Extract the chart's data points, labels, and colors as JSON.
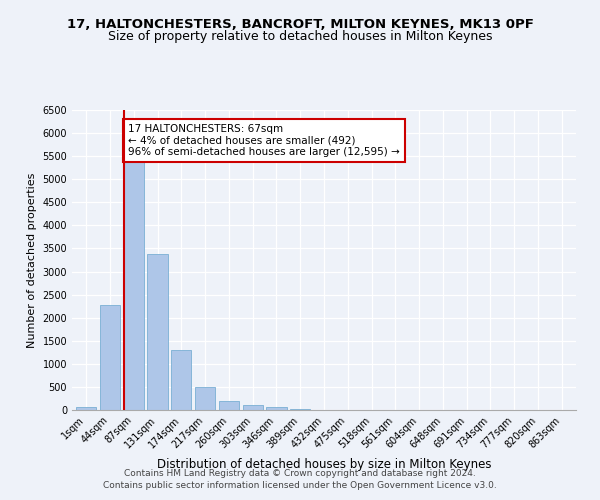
{
  "title": "17, HALTONCHESTERS, BANCROFT, MILTON KEYNES, MK13 0PF",
  "subtitle": "Size of property relative to detached houses in Milton Keynes",
  "xlabel": "Distribution of detached houses by size in Milton Keynes",
  "ylabel": "Number of detached properties",
  "bar_labels": [
    "1sqm",
    "44sqm",
    "87sqm",
    "131sqm",
    "174sqm",
    "217sqm",
    "260sqm",
    "303sqm",
    "346sqm",
    "389sqm",
    "432sqm",
    "475sqm",
    "518sqm",
    "561sqm",
    "604sqm",
    "648sqm",
    "691sqm",
    "734sqm",
    "777sqm",
    "820sqm",
    "863sqm"
  ],
  "bar_values": [
    75,
    2280,
    5440,
    3380,
    1300,
    490,
    190,
    105,
    75,
    30,
    10,
    5,
    2,
    1,
    0,
    0,
    0,
    0,
    0,
    0,
    0
  ],
  "bar_color": "#aec6e8",
  "bar_edge_color": "#7aafd4",
  "vline_color": "#cc0000",
  "annotation_text": "17 HALTONCHESTERS: 67sqm\n← 4% of detached houses are smaller (492)\n96% of semi-detached houses are larger (12,595) →",
  "annotation_box_color": "#cc0000",
  "ylim": [
    0,
    6500
  ],
  "yticks": [
    0,
    500,
    1000,
    1500,
    2000,
    2500,
    3000,
    3500,
    4000,
    4500,
    5000,
    5500,
    6000,
    6500
  ],
  "background_color": "#eef2f9",
  "grid_color": "#ffffff",
  "footer": "Contains HM Land Registry data © Crown copyright and database right 2024.\nContains public sector information licensed under the Open Government Licence v3.0.",
  "title_fontsize": 9.5,
  "subtitle_fontsize": 9,
  "xlabel_fontsize": 8.5,
  "ylabel_fontsize": 8,
  "tick_fontsize": 7,
  "annotation_fontsize": 7.5,
  "footer_fontsize": 6.5
}
